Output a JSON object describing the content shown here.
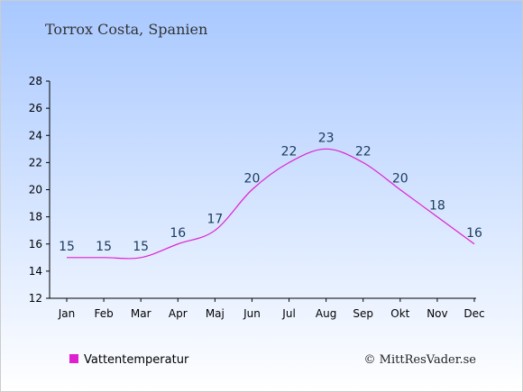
{
  "colors": {
    "bg_top": "#a8c8ff",
    "bg_bottom": "#ffffff",
    "line": "#e020d0",
    "axis": "#000000",
    "label": "#1a3a5c"
  },
  "chart_data": {
    "type": "line",
    "title": "Torrox Costa, Spanien",
    "categories": [
      "Jan",
      "Feb",
      "Mar",
      "Apr",
      "Maj",
      "Jun",
      "Jul",
      "Aug",
      "Sep",
      "Okt",
      "Nov",
      "Dec"
    ],
    "series": [
      {
        "name": "Vattentemperatur",
        "values": [
          15,
          15,
          15,
          16,
          17,
          20,
          22,
          23,
          22,
          20,
          18,
          16
        ]
      }
    ],
    "ylim": [
      12,
      28
    ],
    "yticks": [
      12,
      14,
      16,
      18,
      20,
      22,
      24,
      26,
      28
    ],
    "grid": false,
    "legend": "bottom-left"
  },
  "credit": "© MittResVader.se"
}
